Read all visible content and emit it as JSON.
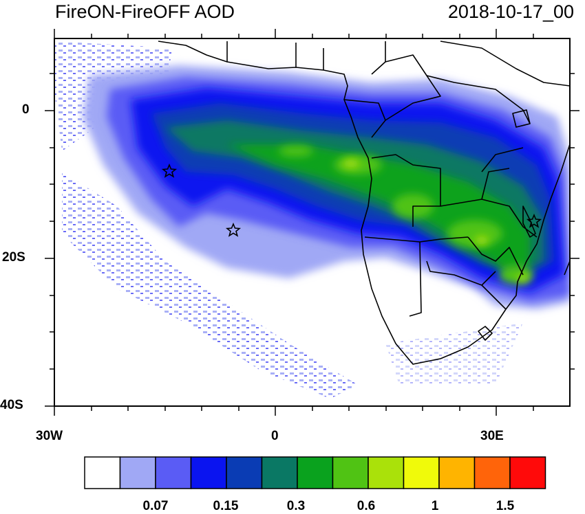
{
  "title": {
    "left": "FireON-FireOFF AOD",
    "right": "2018-10-17_00"
  },
  "axes": {
    "x_ticks": [
      "30W",
      "0",
      "30E"
    ],
    "y_ticks": [
      "0",
      "20S",
      "40S"
    ]
  },
  "colorbar": {
    "colors": [
      "#ffffff",
      "#a0a8f5",
      "#5a5cf5",
      "#0a14f0",
      "#0a3cb4",
      "#0a7864",
      "#0aa21e",
      "#50c314",
      "#aae10a",
      "#f0fa0a",
      "#ffb400",
      "#ff640a",
      "#ff0a0a"
    ],
    "labels": [
      "0.07",
      "0.15",
      "0.3",
      "0.6",
      "1",
      "1.5"
    ]
  },
  "markers": {
    "stars": [
      "star",
      "star",
      "star"
    ]
  }
}
